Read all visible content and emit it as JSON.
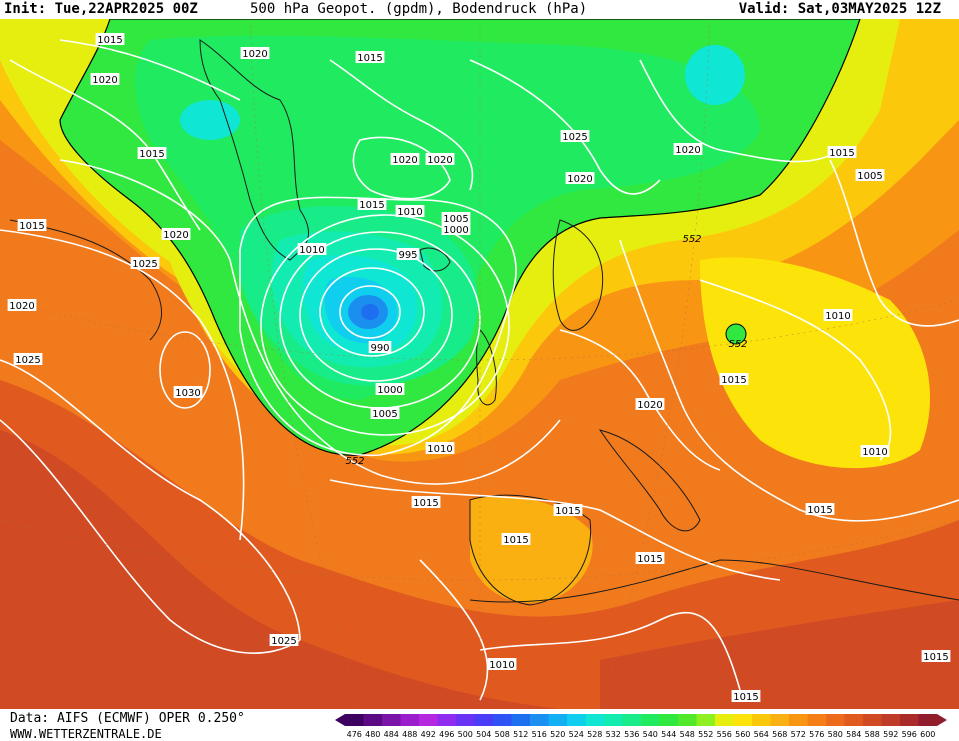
{
  "header": {
    "init": "Init: Tue,22APR2025 00Z",
    "title": "500 hPa Geopot. (gpdm), Bodendruck (hPa)",
    "valid": "Valid: Sat,03MAY2025 12Z"
  },
  "footer": {
    "data_source": "Data: AIFS (ECMWF) OPER 0.250°",
    "website": "WWW.WETTERZENTRALE.DE"
  },
  "legend": {
    "values": [
      "476",
      "480",
      "484",
      "488",
      "492",
      "496",
      "500",
      "504",
      "508",
      "512",
      "516",
      "520",
      "524",
      "528",
      "532",
      "536",
      "540",
      "544",
      "548",
      "552",
      "556",
      "560",
      "564",
      "568",
      "572",
      "576",
      "580",
      "584",
      "588",
      "592",
      "596",
      "600"
    ],
    "colors": [
      "#3d0060",
      "#5a0a82",
      "#7a14a8",
      "#9a1ecc",
      "#b428e0",
      "#8f2cf0",
      "#6a32f5",
      "#4a3cf7",
      "#2e52f5",
      "#1e6ef0",
      "#1a8ff0",
      "#12b0f2",
      "#10cfee",
      "#10e6d4",
      "#12ecb0",
      "#18ec88",
      "#20ea60",
      "#30e840",
      "#52e82c",
      "#8ef020",
      "#e6ee10",
      "#fce40a",
      "#fcc80c",
      "#fab010",
      "#f89614",
      "#f47e18",
      "#ec6a1c",
      "#e05a20",
      "#d04a24",
      "#c03a28",
      "#a82a2a",
      "#901c2c"
    ]
  },
  "isobars": [
    {
      "text": "1015"
    },
    {
      "text": "1020"
    },
    {
      "text": "1015"
    },
    {
      "text": "1020"
    },
    {
      "text": "1015"
    },
    {
      "text": "1020"
    },
    {
      "text": "1020"
    },
    {
      "text": "1025"
    },
    {
      "text": "1020"
    },
    {
      "text": "1015"
    },
    {
      "text": "1010"
    },
    {
      "text": "1005"
    },
    {
      "text": "1000"
    },
    {
      "text": "1020"
    },
    {
      "text": "1015"
    },
    {
      "text": "1005"
    },
    {
      "text": "1015"
    },
    {
      "text": "1020"
    },
    {
      "text": "1025"
    },
    {
      "text": "1010"
    },
    {
      "text": "995"
    },
    {
      "text": "1020"
    },
    {
      "text": "1025"
    },
    {
      "text": "990"
    },
    {
      "text": "1030"
    },
    {
      "text": "1000"
    },
    {
      "text": "1005"
    },
    {
      "text": "1010"
    },
    {
      "text": "1015"
    },
    {
      "text": "1015"
    },
    {
      "text": "1015"
    },
    {
      "text": "1010"
    },
    {
      "text": "1015"
    },
    {
      "text": "1020"
    },
    {
      "text": "1025"
    },
    {
      "text": "1015"
    },
    {
      "text": "1010"
    },
    {
      "text": "1010"
    },
    {
      "text": "1015"
    },
    {
      "text": "1015"
    },
    {
      "text": "1015"
    }
  ],
  "contour_labels": [
    {
      "text": "552"
    },
    {
      "text": "552"
    },
    {
      "text": "552"
    }
  ]
}
